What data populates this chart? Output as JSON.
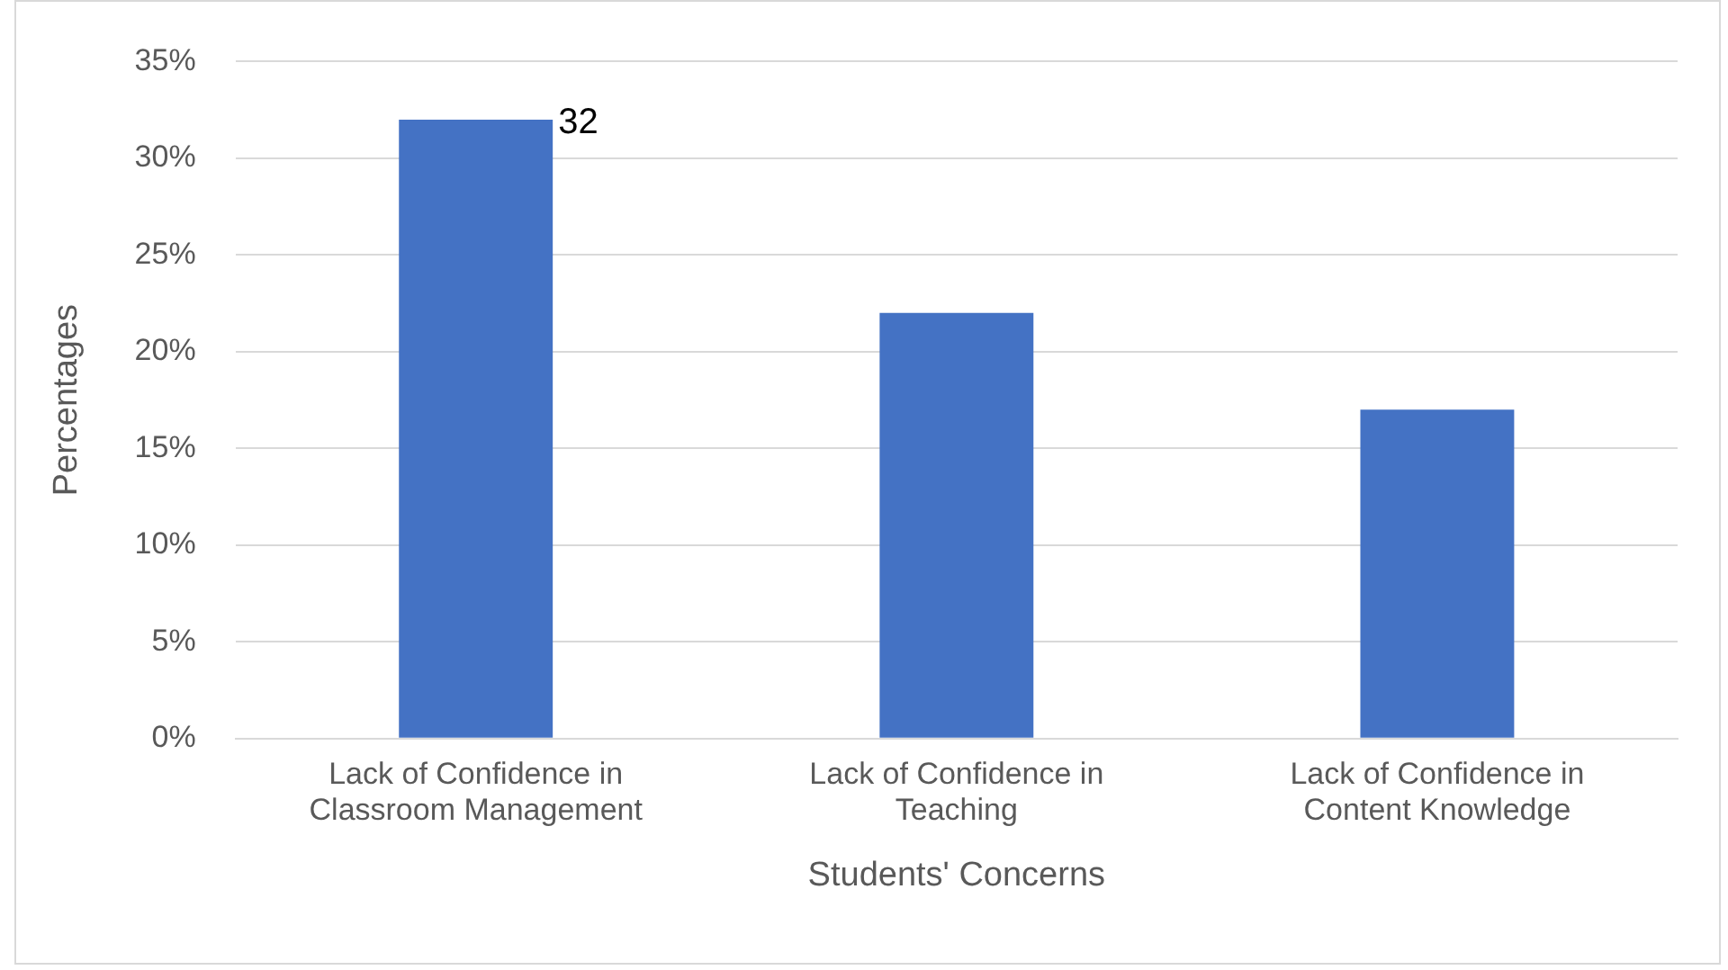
{
  "chart_data": {
    "type": "bar",
    "xlabel": "Students' Concerns",
    "ylabel": "Percentages",
    "categories": [
      "Lack of Confidence in Classroom Management",
      "Lack of Confidence in Teaching",
      "Lack of Confidence in Content Knowledge"
    ],
    "values": [
      32,
      22,
      17
    ],
    "value_labels": [
      "32",
      null,
      null
    ],
    "color": "#4472c4",
    "ylim": [
      0,
      35
    ],
    "yticks": [
      {
        "value": 0,
        "label": "0%"
      },
      {
        "value": 5,
        "label": "5%"
      },
      {
        "value": 10,
        "label": "10%"
      },
      {
        "value": 15,
        "label": "15%"
      },
      {
        "value": 20,
        "label": "20%"
      },
      {
        "value": 25,
        "label": "25%"
      },
      {
        "value": 30,
        "label": "30%"
      },
      {
        "value": 35,
        "label": "35%"
      }
    ],
    "grid": "y",
    "legend": false
  }
}
